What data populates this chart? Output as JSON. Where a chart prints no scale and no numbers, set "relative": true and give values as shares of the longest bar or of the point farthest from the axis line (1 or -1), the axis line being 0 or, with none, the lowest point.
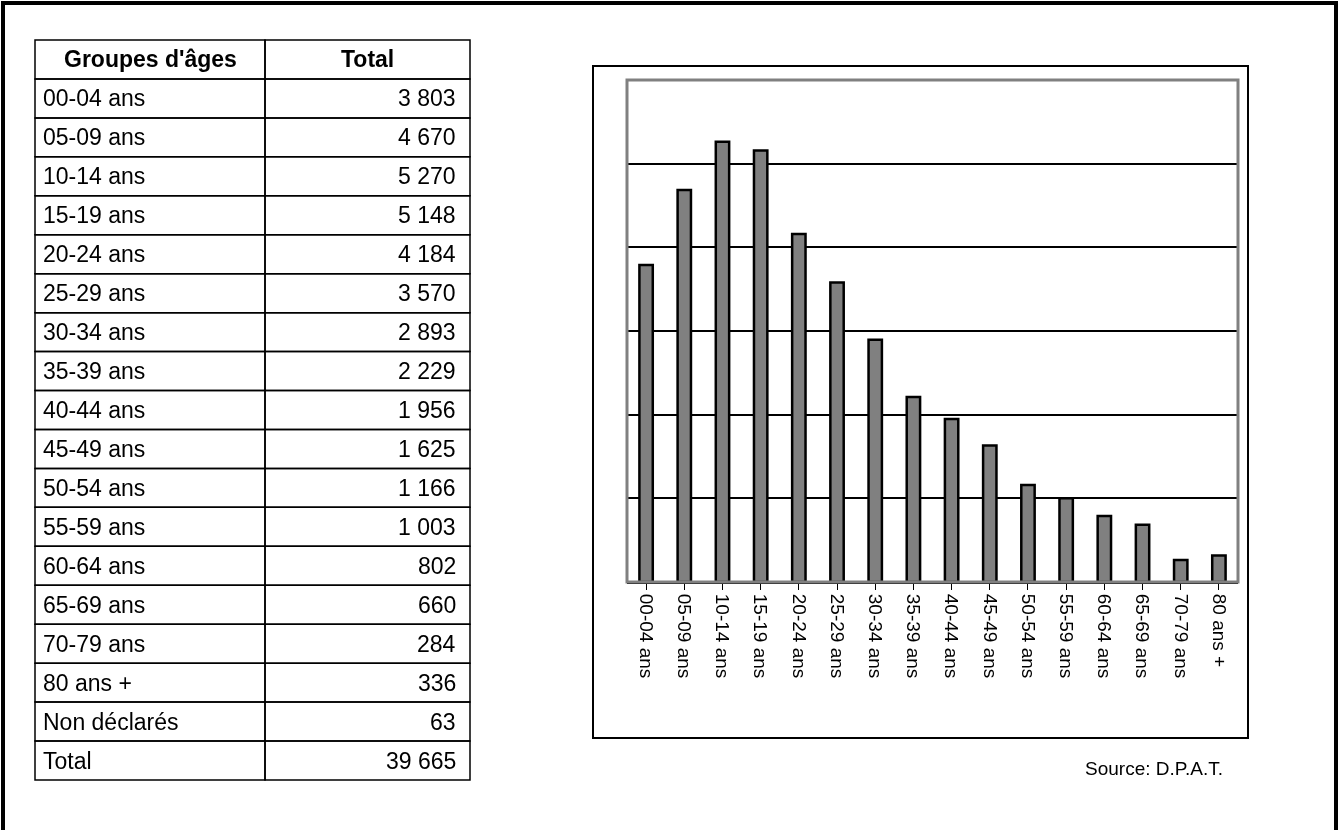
{
  "chart_data": [
    {
      "type": "other",
      "annotations": [
        "Groupes d'âges",
        "Total",
        "00-04 ans",
        "3 803",
        "05-09 ans",
        "4 670",
        "10-14 ans",
        "5 270",
        "15-19 ans",
        "5 148",
        "20-24 ans",
        "4 184",
        "25-29 ans",
        "3 570",
        "30-34 ans",
        "2 893",
        "35-39 ans",
        "2 229",
        "40-44 ans",
        "1 956",
        "45-49 ans",
        "1 625",
        "50-54 ans",
        "1 166",
        "55-59 ans",
        "1 003",
        "60-64 ans",
        "802",
        "65-69 ans",
        "660",
        "70-79 ans",
        "284",
        "80 ans +",
        "336",
        "Non déclarés",
        "63",
        "Total",
        "39 665"
      ]
    },
    {
      "type": "bar",
      "categories": [
        "00-04 ans",
        "05-09 ans",
        "10-14 ans",
        "15-19 ans",
        "20-24 ans",
        "25-29 ans",
        "30-34 ans",
        "35-39 ans",
        "40-44 ans",
        "45-49 ans",
        "50-54 ans",
        "55-59 ans",
        "60-64 ans",
        "65-69 ans",
        "70-79 ans",
        "80 ans +"
      ],
      "values": [
        0.72,
        0.89,
        1,
        0.98,
        0.79,
        0.68,
        0.55,
        0.42,
        0.37,
        0.31,
        0.22,
        0.19,
        0.15,
        0.13,
        0.05,
        0.06
      ],
      "relative": true,
      "color": "#808080",
      "tick_labels": "x",
      "grid": "y",
      "annotations": [
        "Source: D.P.A.T."
      ]
    }
  ]
}
